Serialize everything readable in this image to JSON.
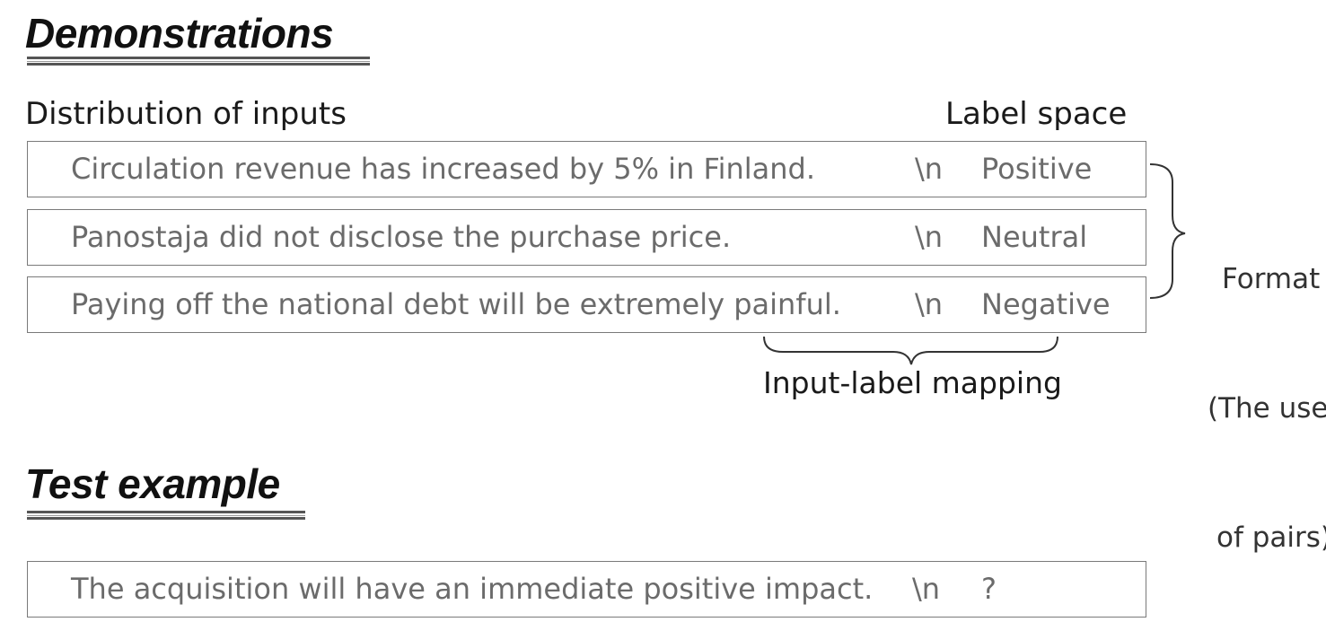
{
  "demonstrations": {
    "heading": "Demonstrations",
    "distribution_label": "Distribution of inputs",
    "label_space_label": "Label space",
    "rows": [
      {
        "input": "Circulation revenue has increased by 5% in Finland.",
        "sep": "\\n",
        "label": "Positive"
      },
      {
        "input": "Panostaja did not disclose the purchase price.",
        "sep": "\\n",
        "label": "Neutral"
      },
      {
        "input": "Paying off the national debt will be extremely painful.",
        "sep": "\\n",
        "label": "Negative"
      }
    ],
    "mapping_label": "Input-label mapping",
    "format_lines": [
      "Format",
      "(The use",
      "of pairs)"
    ]
  },
  "test": {
    "heading": "Test example",
    "row": {
      "input": "The acquisition will have an immediate positive impact.",
      "sep": "\\n",
      "label": "?"
    }
  }
}
